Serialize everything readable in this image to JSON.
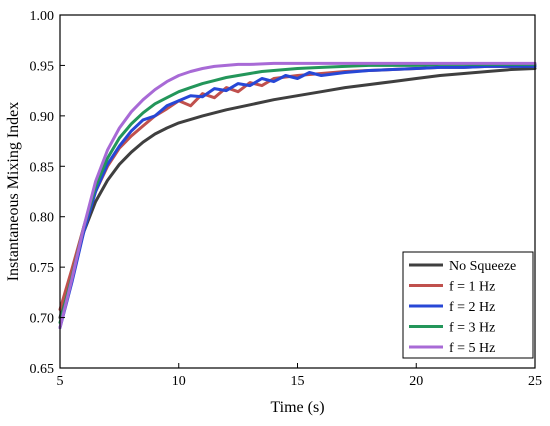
{
  "chart_data": {
    "type": "line",
    "xlabel": "Time (s)",
    "ylabel": "Instantaneous Mixing Index",
    "xlim": [
      5,
      25
    ],
    "ylim": [
      0.65,
      1.0
    ],
    "x_ticks": [
      "5",
      "10",
      "15",
      "20",
      "25"
    ],
    "y_ticks": [
      "0.65",
      "0.70",
      "0.75",
      "0.80",
      "0.85",
      "0.90",
      "0.95",
      "1.00"
    ],
    "grid": false,
    "legend_position": "bottom-right",
    "series": [
      {
        "name": "No Squeeze",
        "color": "#3f3f3f",
        "x": [
          5,
          5.5,
          6,
          6.5,
          7,
          7.5,
          8,
          8.5,
          9,
          9.5,
          10,
          11,
          12,
          13,
          14,
          15,
          16,
          17,
          18,
          19,
          20,
          21,
          22,
          23,
          24,
          25
        ],
        "y": [
          0.7,
          0.745,
          0.785,
          0.815,
          0.836,
          0.852,
          0.864,
          0.874,
          0.882,
          0.888,
          0.893,
          0.9,
          0.906,
          0.911,
          0.916,
          0.92,
          0.924,
          0.928,
          0.931,
          0.934,
          0.937,
          0.94,
          0.942,
          0.944,
          0.946,
          0.947
        ]
      },
      {
        "name": "f = 1 Hz",
        "color": "#c0504d",
        "x": [
          5,
          5.5,
          6,
          6.5,
          7,
          7.5,
          8,
          8.5,
          9,
          9.5,
          10,
          10.5,
          11,
          11.5,
          12,
          12.5,
          13,
          13.5,
          14,
          15,
          16,
          17,
          18,
          19,
          20,
          21,
          22,
          23,
          24,
          25
        ],
        "y": [
          0.708,
          0.748,
          0.79,
          0.825,
          0.85,
          0.868,
          0.88,
          0.89,
          0.9,
          0.907,
          0.915,
          0.91,
          0.922,
          0.918,
          0.928,
          0.924,
          0.933,
          0.93,
          0.937,
          0.94,
          0.942,
          0.944,
          0.945,
          0.946,
          0.947,
          0.948,
          0.948,
          0.949,
          0.949,
          0.95
        ]
      },
      {
        "name": "f = 2 Hz",
        "color": "#2747d6",
        "x": [
          5,
          5.5,
          6,
          6.5,
          7,
          7.5,
          8,
          8.5,
          9,
          9.5,
          10,
          10.5,
          11,
          11.5,
          12,
          12.5,
          13,
          13.5,
          14,
          14.5,
          15,
          15.5,
          16,
          17,
          18,
          19,
          20,
          21,
          22,
          23,
          24,
          25
        ],
        "y": [
          0.69,
          0.735,
          0.785,
          0.825,
          0.852,
          0.87,
          0.885,
          0.896,
          0.9,
          0.91,
          0.915,
          0.92,
          0.919,
          0.927,
          0.925,
          0.932,
          0.93,
          0.937,
          0.934,
          0.94,
          0.937,
          0.943,
          0.94,
          0.943,
          0.945,
          0.946,
          0.947,
          0.948,
          0.948,
          0.949,
          0.949,
          0.949
        ]
      },
      {
        "name": "f = 3 Hz",
        "color": "#23965a",
        "x": [
          5,
          5.5,
          6,
          6.5,
          7,
          7.5,
          8,
          8.5,
          9,
          9.5,
          10,
          10.5,
          11,
          11.5,
          12,
          12.5,
          13,
          13.5,
          14,
          15,
          16,
          17,
          18,
          19,
          20,
          21,
          22,
          23,
          24,
          25
        ],
        "y": [
          0.695,
          0.74,
          0.79,
          0.83,
          0.858,
          0.878,
          0.892,
          0.903,
          0.912,
          0.918,
          0.924,
          0.928,
          0.932,
          0.935,
          0.938,
          0.94,
          0.942,
          0.944,
          0.945,
          0.947,
          0.948,
          0.949,
          0.95,
          0.95,
          0.95,
          0.951,
          0.951,
          0.951,
          0.951,
          0.951
        ]
      },
      {
        "name": "f = 5 Hz",
        "color": "#a86ad6",
        "x": [
          5,
          5.5,
          6,
          6.5,
          7,
          7.5,
          8,
          8.5,
          9,
          9.5,
          10,
          10.5,
          11,
          11.5,
          12,
          12.5,
          13,
          14,
          15,
          16,
          17,
          18,
          19,
          20,
          21,
          22,
          23,
          24,
          25
        ],
        "y": [
          0.69,
          0.738,
          0.79,
          0.835,
          0.866,
          0.888,
          0.904,
          0.916,
          0.926,
          0.934,
          0.94,
          0.944,
          0.947,
          0.949,
          0.95,
          0.951,
          0.951,
          0.952,
          0.952,
          0.952,
          0.952,
          0.952,
          0.952,
          0.952,
          0.952,
          0.952,
          0.952,
          0.952,
          0.952
        ]
      }
    ]
  }
}
